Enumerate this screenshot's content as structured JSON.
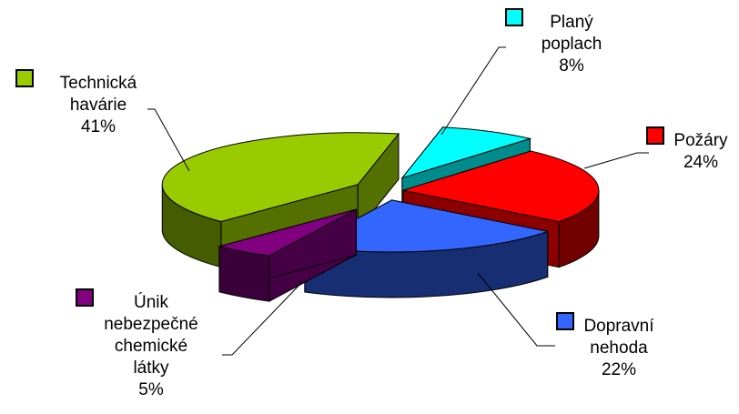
{
  "chart_data": {
    "type": "pie",
    "style": "3d-exploded",
    "title": "",
    "legend": "labels-with-callouts",
    "slices": [
      {
        "label": [
          "Planý",
          "poplach"
        ],
        "value": 8,
        "display": "8%",
        "color": "#00ffff"
      },
      {
        "label": [
          "Požáry"
        ],
        "value": 24,
        "display": "24%",
        "color": "#ff0000"
      },
      {
        "label": [
          "Dopravní",
          "nehoda"
        ],
        "value": 22,
        "display": "22%",
        "color": "#3366ff"
      },
      {
        "label": [
          "Únik",
          "nebezpečné",
          "chemické",
          "látky"
        ],
        "value": 5,
        "display": "5%",
        "color": "#800080"
      },
      {
        "label": [
          "Technická",
          "havárie"
        ],
        "value": 41,
        "display": "41%",
        "color": "#99cc00"
      }
    ]
  }
}
